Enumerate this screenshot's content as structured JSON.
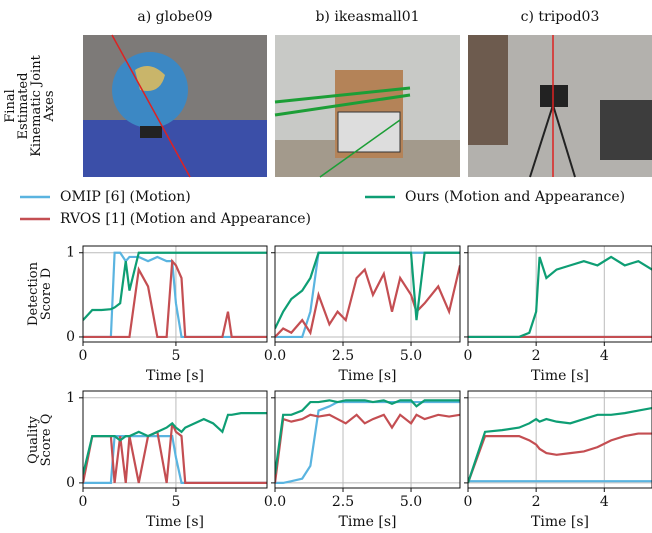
{
  "column_titles": [
    "a) globe09",
    "b) ikeasmall01",
    "c) tripod03"
  ],
  "row_labels": [
    [
      "Final",
      "Estimated",
      "Kinematic Joint",
      "Axes"
    ],
    [
      "Detection",
      "Score D"
    ],
    [
      "Quality",
      "Score Q"
    ]
  ],
  "legend": [
    {
      "name": "OMIP [6] (Motion)",
      "color": "#5ab4e0"
    },
    {
      "name": "RVOS [1] (Motion and Appearance)",
      "color": "#c44e52"
    },
    {
      "name": "Ours (Motion and Appearance)",
      "color": "#0e9e74"
    }
  ],
  "chart_data": [
    {
      "type": "line",
      "xlabel": "Time [s]",
      "xlim": [
        0,
        9.9
      ],
      "xticks": [
        0,
        5
      ],
      "ylim": [
        -0.06,
        1.08
      ],
      "yticks": [
        0,
        1
      ],
      "show_ytick_labels": true,
      "grid": true,
      "x": [
        0,
        0.5,
        1,
        1.5,
        1.7,
        2,
        2.3,
        2.5,
        3,
        3.5,
        4,
        4.5,
        4.8,
        5,
        5.3,
        5.5,
        6,
        6.5,
        7,
        7.5,
        7.8,
        8,
        8.5,
        9,
        9.5,
        9.9
      ],
      "series": [
        {
          "color": "#5ab4e0",
          "values": [
            0,
            0,
            0,
            0,
            1,
            1,
            0.9,
            0.95,
            0.95,
            0.9,
            0.95,
            0.9,
            0.9,
            0.4,
            0,
            0,
            0,
            0,
            0,
            0,
            0,
            0,
            0,
            0,
            0,
            0
          ]
        },
        {
          "color": "#c44e52",
          "values": [
            0,
            0,
            0,
            0,
            0,
            0,
            0,
            0,
            0.8,
            0.6,
            0,
            0,
            0.9,
            0.85,
            0.7,
            0,
            0,
            0,
            0,
            0,
            0.3,
            0,
            0,
            0,
            0,
            0
          ]
        },
        {
          "color": "#0e9e74",
          "values": [
            0.2,
            0.32,
            0.32,
            0.33,
            0.35,
            0.4,
            0.9,
            0.55,
            1,
            1,
            1,
            1,
            1,
            1,
            1,
            1,
            1,
            1,
            1,
            1,
            1,
            1,
            1,
            1,
            1,
            1
          ]
        }
      ]
    },
    {
      "type": "line",
      "xlabel": "Time [s]",
      "xlim": [
        0,
        6.8
      ],
      "xticks": [
        {
          "value": 0,
          "label": "0.0"
        },
        2.5,
        {
          "value": 5,
          "label": "5.0"
        }
      ],
      "ylim": [
        -0.06,
        1.08
      ],
      "yticks": [
        0,
        1
      ],
      "show_ytick_labels": false,
      "grid": true,
      "x": [
        0,
        0.3,
        0.6,
        1,
        1.3,
        1.6,
        2,
        2.3,
        2.6,
        3,
        3.3,
        3.6,
        4,
        4.3,
        4.6,
        5,
        5.2,
        5.5,
        6,
        6.4,
        6.8
      ],
      "series": [
        {
          "color": "#5ab4e0",
          "values": [
            0,
            0,
            0,
            0,
            0.3,
            1,
            1,
            1,
            1,
            1,
            1,
            1,
            1,
            1,
            1,
            1,
            1,
            1,
            1,
            1,
            1
          ]
        },
        {
          "color": "#c44e52",
          "values": [
            0,
            0.1,
            0.05,
            0.2,
            0.05,
            0.5,
            0.15,
            0.3,
            0.2,
            0.7,
            0.8,
            0.5,
            0.75,
            0.3,
            0.7,
            0.5,
            0.3,
            0.4,
            0.6,
            0.3,
            0.85
          ]
        },
        {
          "color": "#0e9e74",
          "values": [
            0.1,
            0.3,
            0.45,
            0.55,
            0.7,
            1,
            1,
            1,
            1,
            1,
            1,
            1,
            1,
            1,
            1,
            1,
            0.2,
            1,
            1,
            1,
            1
          ]
        }
      ]
    },
    {
      "type": "line",
      "xlabel": "Time [s]",
      "xlim": [
        0,
        5.4
      ],
      "xticks": [
        0,
        2,
        4
      ],
      "ylim": [
        -0.06,
        1.08
      ],
      "yticks": [
        0,
        1
      ],
      "show_ytick_labels": false,
      "grid": true,
      "x": [
        0,
        0.5,
        1,
        1.5,
        1.8,
        2,
        2.1,
        2.3,
        2.6,
        3,
        3.4,
        3.8,
        4.2,
        4.6,
        5,
        5.4
      ],
      "series": [
        {
          "color": "#5ab4e0",
          "values": [
            0,
            0,
            0,
            0,
            0,
            0,
            0,
            0,
            0,
            0,
            0,
            0,
            0,
            0,
            0,
            0
          ]
        },
        {
          "color": "#c44e52",
          "values": [
            0,
            0,
            0,
            0,
            0,
            0,
            0,
            0,
            0,
            0,
            0,
            0,
            0,
            0,
            0,
            0
          ]
        },
        {
          "color": "#0e9e74",
          "values": [
            0,
            0,
            0,
            0,
            0.05,
            0.3,
            0.95,
            0.7,
            0.8,
            0.85,
            0.9,
            0.85,
            0.95,
            0.85,
            0.9,
            0.8
          ]
        }
      ]
    },
    {
      "type": "line",
      "xlabel": "Time [s]",
      "xlim": [
        0,
        9.9
      ],
      "xticks": [
        0,
        5
      ],
      "ylim": [
        -0.06,
        1.08
      ],
      "yticks": [
        0,
        1
      ],
      "show_ytick_labels": true,
      "grid": true,
      "x": [
        0,
        0.5,
        1,
        1.5,
        1.7,
        2,
        2.3,
        2.5,
        3,
        3.5,
        4,
        4.5,
        4.8,
        5,
        5.3,
        5.5,
        6,
        6.5,
        7,
        7.5,
        7.8,
        8,
        8.5,
        9,
        9.5,
        9.9
      ],
      "series": [
        {
          "color": "#5ab4e0",
          "values": [
            0,
            0,
            0,
            0,
            0.55,
            0.55,
            0.55,
            0.55,
            0.55,
            0.55,
            0.55,
            0.55,
            0.55,
            0.3,
            0,
            0,
            0,
            0,
            0,
            0,
            0,
            0,
            0,
            0,
            0,
            0
          ]
        },
        {
          "color": "#c44e52",
          "values": [
            0,
            0.55,
            0.55,
            0.55,
            0,
            0.55,
            0,
            0.55,
            0,
            0.55,
            0.6,
            0,
            0.7,
            0.6,
            0.55,
            0,
            0,
            0,
            0,
            0,
            0,
            0,
            0,
            0,
            0,
            0
          ]
        },
        {
          "color": "#0e9e74",
          "values": [
            0.1,
            0.55,
            0.55,
            0.55,
            0.55,
            0.5,
            0.55,
            0.55,
            0.6,
            0.55,
            0.6,
            0.65,
            0.7,
            0.65,
            0.6,
            0.65,
            0.7,
            0.75,
            0.7,
            0.6,
            0.8,
            0.8,
            0.82,
            0.82,
            0.82,
            0.82
          ]
        }
      ]
    },
    {
      "type": "line",
      "xlabel": "Time [s]",
      "xlim": [
        0,
        6.8
      ],
      "xticks": [
        {
          "value": 0,
          "label": "0.0"
        },
        2.5,
        {
          "value": 5,
          "label": "5.0"
        }
      ],
      "ylim": [
        -0.06,
        1.08
      ],
      "yticks": [
        0,
        1
      ],
      "show_ytick_labels": false,
      "grid": true,
      "x": [
        0,
        0.3,
        0.6,
        1,
        1.3,
        1.6,
        2,
        2.3,
        2.6,
        3,
        3.3,
        3.6,
        4,
        4.3,
        4.6,
        5,
        5.2,
        5.5,
        6,
        6.4,
        6.8
      ],
      "series": [
        {
          "color": "#5ab4e0",
          "values": [
            0,
            0,
            0.02,
            0.05,
            0.2,
            0.85,
            0.9,
            0.95,
            0.95,
            0.95,
            0.95,
            0.95,
            0.95,
            0.95,
            0.95,
            0.95,
            0.95,
            0.95,
            0.95,
            0.95,
            0.95
          ]
        },
        {
          "color": "#c44e52",
          "values": [
            0,
            0.75,
            0.72,
            0.75,
            0.8,
            0.78,
            0.8,
            0.75,
            0.7,
            0.8,
            0.7,
            0.75,
            0.8,
            0.65,
            0.8,
            0.7,
            0.8,
            0.75,
            0.8,
            0.78,
            0.8
          ]
        },
        {
          "color": "#0e9e74",
          "values": [
            0.1,
            0.8,
            0.8,
            0.85,
            0.95,
            0.95,
            0.97,
            0.95,
            0.97,
            0.97,
            0.97,
            0.95,
            0.97,
            0.93,
            0.97,
            0.97,
            0.9,
            0.97,
            0.97,
            0.97,
            0.97
          ]
        }
      ]
    },
    {
      "type": "line",
      "xlabel": "Time [s]",
      "xlim": [
        0,
        5.4
      ],
      "xticks": [
        0,
        2,
        4
      ],
      "ylim": [
        -0.06,
        1.08
      ],
      "yticks": [
        0,
        1
      ],
      "show_ytick_labels": false,
      "grid": true,
      "x": [
        0,
        0.5,
        1,
        1.5,
        1.8,
        2,
        2.1,
        2.3,
        2.6,
        3,
        3.4,
        3.8,
        4.2,
        4.6,
        5,
        5.4
      ],
      "series": [
        {
          "color": "#5ab4e0",
          "values": [
            0.02,
            0.02,
            0.02,
            0.02,
            0.02,
            0.02,
            0.02,
            0.02,
            0.02,
            0.02,
            0.02,
            0.02,
            0.02,
            0.02,
            0.02,
            0.02
          ]
        },
        {
          "color": "#c44e52",
          "values": [
            0,
            0.55,
            0.55,
            0.55,
            0.5,
            0.45,
            0.4,
            0.35,
            0.33,
            0.35,
            0.37,
            0.42,
            0.5,
            0.55,
            0.58,
            0.58
          ]
        },
        {
          "color": "#0e9e74",
          "values": [
            0,
            0.6,
            0.62,
            0.65,
            0.7,
            0.75,
            0.72,
            0.75,
            0.72,
            0.7,
            0.75,
            0.8,
            0.8,
            0.82,
            0.85,
            0.88
          ]
        }
      ]
    }
  ]
}
